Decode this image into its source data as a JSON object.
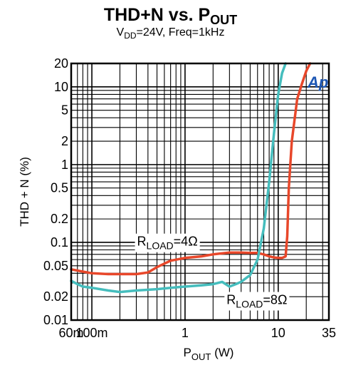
{
  "colors": {
    "rload_4": "#e8472a",
    "rload_8": "#45bdbd",
    "logo": "#1d57b4"
  },
  "chart_data": {
    "type": "line",
    "title_main": "THD+N vs. P",
    "title_sub": "OUT",
    "subtitle_a": "V",
    "subtitle_a_sub": "DD",
    "subtitle_b": "=24V, Freq=1kHz",
    "ylabel": "THD + N (%)",
    "xlabel_main": "P",
    "xlabel_sub": "OUT",
    "xlabel_unit": " (W)",
    "x_scale": "log",
    "y_scale": "log",
    "xlim": [
      0.06,
      35
    ],
    "ylim": [
      0.01,
      20
    ],
    "grid": true,
    "x_ticks": [
      {
        "value": 0.06,
        "label": "60m"
      },
      {
        "value": 0.1,
        "label": "100m"
      },
      {
        "value": 1,
        "label": "1"
      },
      {
        "value": 10,
        "label": "10"
      },
      {
        "value": 35,
        "label": "35"
      }
    ],
    "y_ticks": [
      {
        "value": 20,
        "label": "20"
      },
      {
        "value": 10,
        "label": "10"
      },
      {
        "value": 5,
        "label": "5"
      },
      {
        "value": 2,
        "label": "2"
      },
      {
        "value": 1,
        "label": "1"
      },
      {
        "value": 0.5,
        "label": "0.5"
      },
      {
        "value": 0.2,
        "label": "0.2"
      },
      {
        "value": 0.1,
        "label": "0.1"
      },
      {
        "value": 0.05,
        "label": "0.05"
      },
      {
        "value": 0.02,
        "label": "0.02"
      },
      {
        "value": 0.01,
        "label": "0.01"
      }
    ],
    "annotations": [
      {
        "text": "R",
        "sub": "LOAD",
        "tail": "=4Ω",
        "series": "rload_4"
      },
      {
        "text": "R",
        "sub": "LOAD",
        "tail": "=8Ω",
        "series": "rload_8"
      }
    ],
    "logo_text": "Ap",
    "series": [
      {
        "key": "rload_4",
        "color": "#e8472a",
        "x": [
          0.06,
          0.08,
          0.1,
          0.15,
          0.2,
          0.3,
          0.4,
          0.5,
          0.7,
          1,
          1.5,
          2,
          3,
          4,
          5,
          6,
          7,
          8,
          9,
          10,
          11,
          12,
          12.5,
          13,
          14,
          16,
          18,
          20,
          22
        ],
        "y": [
          0.045,
          0.042,
          0.04,
          0.039,
          0.039,
          0.039,
          0.041,
          0.048,
          0.058,
          0.063,
          0.066,
          0.07,
          0.074,
          0.074,
          0.073,
          0.073,
          0.07,
          0.066,
          0.064,
          0.063,
          0.063,
          0.066,
          0.12,
          0.5,
          2,
          7,
          11,
          16,
          20
        ]
      },
      {
        "key": "rload_8",
        "color": "#45bdbd",
        "x": [
          0.06,
          0.07,
          0.08,
          0.1,
          0.15,
          0.2,
          0.3,
          0.5,
          0.7,
          1,
          1.5,
          2,
          2.5,
          3,
          3.5,
          4,
          5,
          6,
          7,
          8,
          9,
          10,
          11,
          12
        ],
        "y": [
          0.032,
          0.029,
          0.027,
          0.026,
          0.024,
          0.023,
          0.024,
          0.025,
          0.026,
          0.027,
          0.028,
          0.029,
          0.031,
          0.027,
          0.029,
          0.031,
          0.038,
          0.06,
          0.15,
          0.6,
          2.5,
          8,
          15,
          20
        ]
      }
    ]
  }
}
